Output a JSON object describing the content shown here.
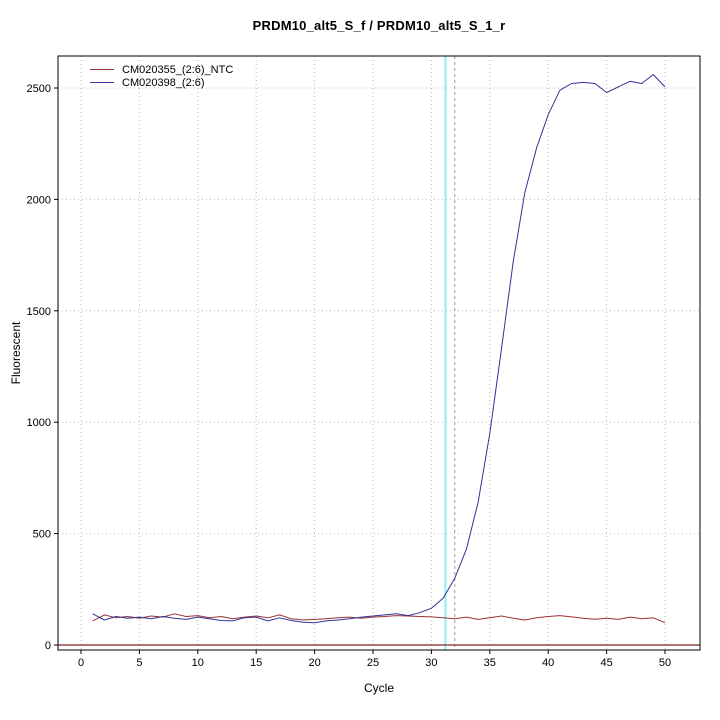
{
  "chart_data": {
    "type": "line",
    "title": "PRDM10_alt5_S_f / PRDM10_alt5_S_1_r",
    "xlabel": "Cycle",
    "ylabel": "Fluorescent",
    "x_axis": {
      "min": 0,
      "max": 50,
      "ticks": [
        0,
        5,
        10,
        15,
        20,
        25,
        30,
        35,
        40,
        45,
        50
      ]
    },
    "y_axis": {
      "min": 0,
      "max": 2500,
      "ticks": [
        0,
        500,
        1000,
        1500,
        2000,
        2500
      ]
    },
    "grid": {
      "show": true,
      "color": "#b8b8b8",
      "style": "dotted"
    },
    "threshold_line": {
      "y": 0,
      "color": "#8b2323"
    },
    "marker_lines": [
      {
        "x": 31.2,
        "color": "#8ceef2",
        "style": "solid",
        "name": "ct-marker-cyan"
      },
      {
        "x": 32.0,
        "color": "#9a9a9a",
        "style": "dashed",
        "name": "ct-marker-dashed"
      }
    ],
    "legend": {
      "position": "top-left",
      "entries": [
        {
          "label": "CM020355_(2:6)_NTC",
          "color": "#993333"
        },
        {
          "label": "CM020398_(2:6)",
          "color": "#333399"
        }
      ]
    },
    "series": [
      {
        "name": "CM020355_(2:6)_NTC",
        "color": "#993333",
        "x_start": 1,
        "x_step": 1,
        "values": [
          108,
          135,
          122,
          128,
          120,
          130,
          125,
          140,
          128,
          132,
          122,
          128,
          118,
          125,
          130,
          122,
          135,
          118,
          112,
          115,
          118,
          122,
          125,
          120,
          125,
          128,
          132,
          130,
          128,
          126,
          122,
          118,
          125,
          115,
          122,
          130,
          120,
          112,
          122,
          128,
          132,
          126,
          120,
          116,
          120,
          115,
          125,
          118,
          122,
          100
        ]
      },
      {
        "name": "CM020398_(2:6)",
        "color": "#333399",
        "x_start": 1,
        "x_step": 1,
        "values": [
          140,
          112,
          128,
          120,
          125,
          118,
          128,
          120,
          115,
          125,
          118,
          110,
          108,
          122,
          125,
          108,
          122,
          110,
          102,
          100,
          108,
          112,
          118,
          125,
          130,
          135,
          140,
          132,
          145,
          165,
          210,
          300,
          430,
          640,
          950,
          1330,
          1720,
          2030,
          2230,
          2380,
          2490,
          2520,
          2525,
          2520,
          2480,
          2505,
          2530,
          2520,
          2560,
          2505
        ]
      }
    ]
  }
}
